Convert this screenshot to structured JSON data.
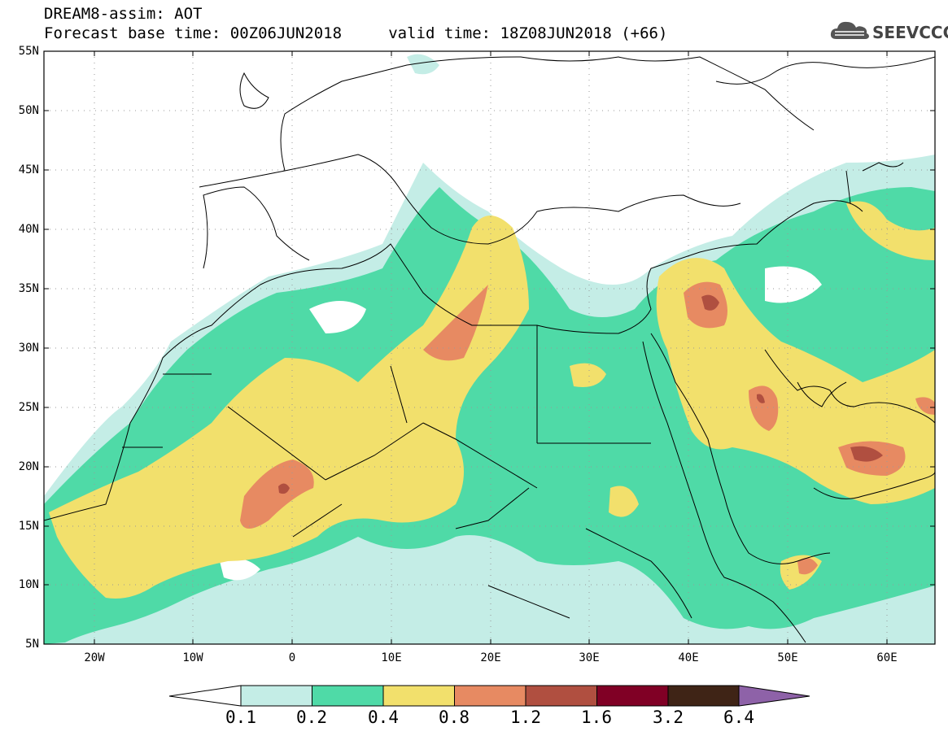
{
  "header": {
    "line1": "DREAM8-assim: AOT",
    "line2": "Forecast base time: 00Z06JUN2018     valid time: 18Z08JUN2018 (+66)"
  },
  "logo": {
    "text": "SEEVCCC",
    "icon": "cloud-icon"
  },
  "map": {
    "lat_labels": [
      "55N",
      "50N",
      "45N",
      "40N",
      "35N",
      "30N",
      "25N",
      "20N",
      "15N",
      "10N",
      "5N"
    ],
    "lon_labels": [
      "20W",
      "10W",
      "0",
      "10E",
      "20E",
      "30E",
      "40E",
      "50E",
      "60E"
    ]
  },
  "colorbar": {
    "levels": [
      "0.1",
      "0.2",
      "0.4",
      "0.8",
      "1.2",
      "1.6",
      "3.2",
      "6.4"
    ],
    "colors": [
      "#c4ede6",
      "#4fdaa7",
      "#f2e06c",
      "#e78a62",
      "#b04f40",
      "#800025",
      "#3f2416",
      "#8e62a8"
    ]
  }
}
